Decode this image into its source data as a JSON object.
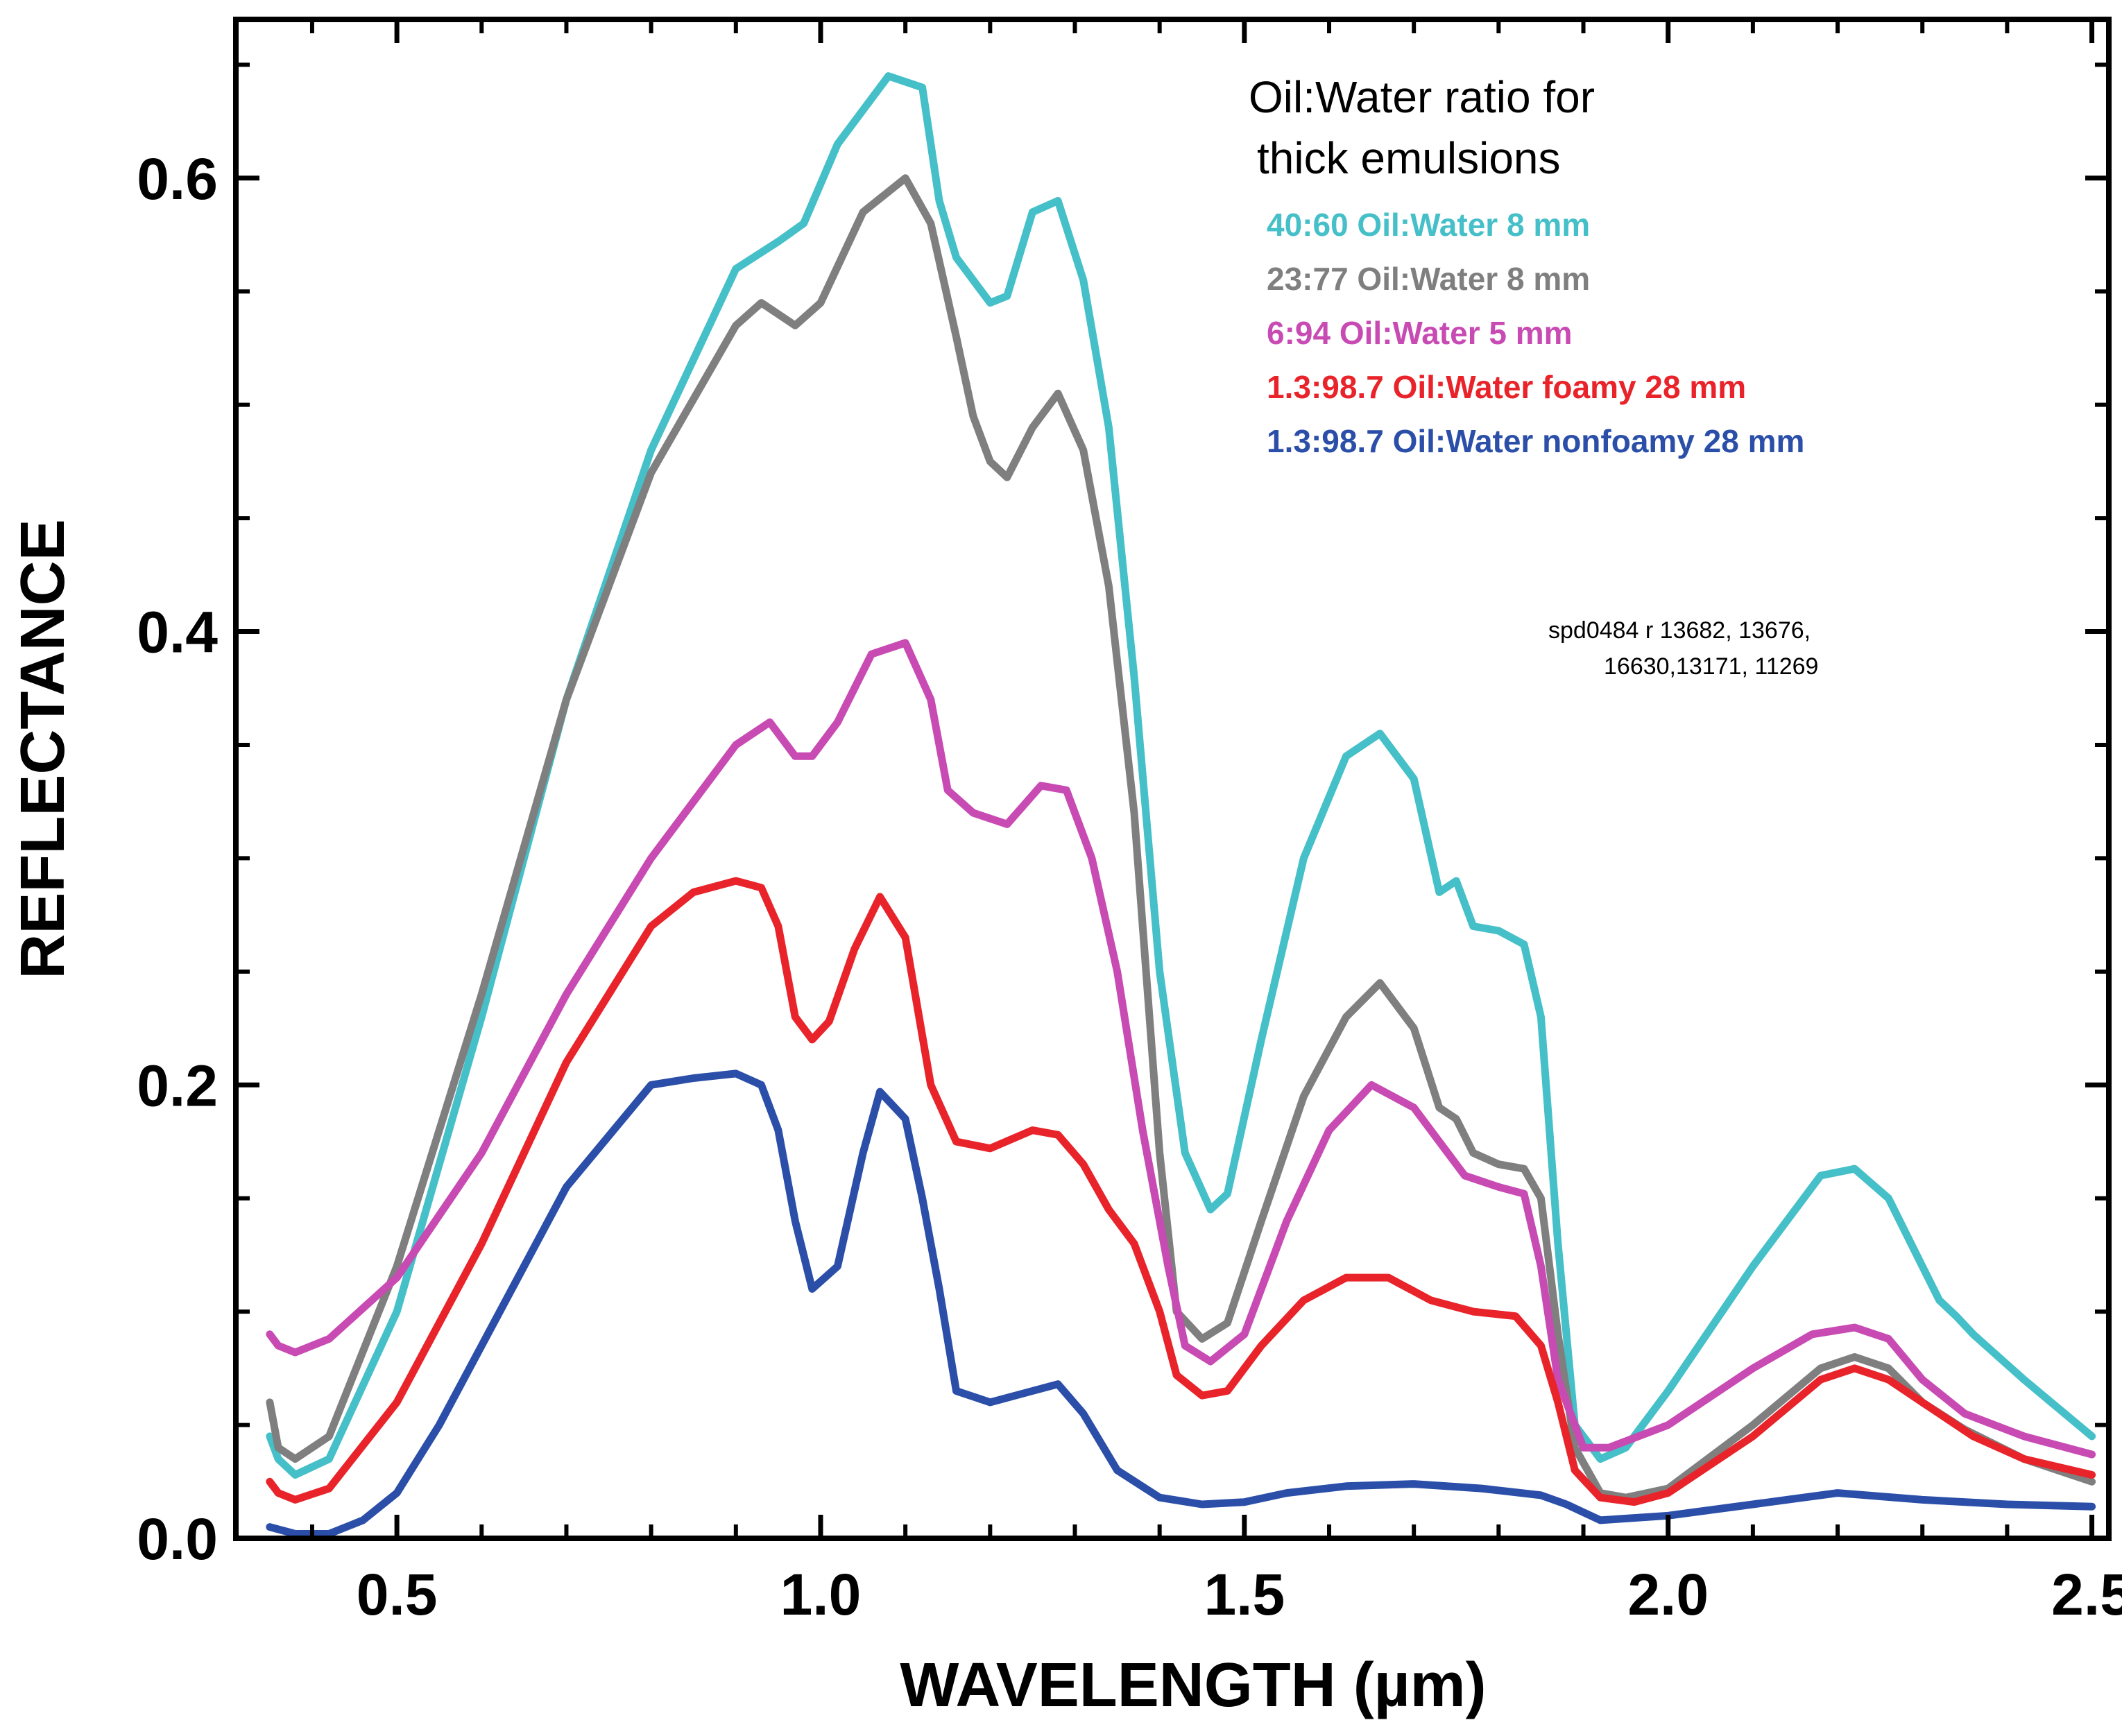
{
  "chart_data": {
    "type": "line",
    "title": "",
    "xlabel": "WAVELENGTH (µm)",
    "ylabel": "REFLECTANCE",
    "xlim": [
      0.31,
      2.52
    ],
    "ylim": [
      0.0,
      0.67
    ],
    "x_ticks": [
      0.5,
      1.0,
      1.5,
      2.0,
      2.5
    ],
    "x_tick_labels": [
      "0.5",
      "1.0",
      "1.5",
      "2.0",
      "2.5"
    ],
    "y_ticks": [
      0.0,
      0.2,
      0.4,
      0.6
    ],
    "y_tick_labels": [
      "0.0",
      "0.2",
      "0.4",
      "0.6"
    ],
    "grid": false,
    "legend_title": [
      "Oil:Water ratio for",
      "thick emulsions"
    ],
    "legend_position": "top-right",
    "annotation": [
      "spd0484 r 13682, 13676,",
      "16630,13171, 11269"
    ],
    "series": [
      {
        "name": "40:60 Oil:Water  8 mm",
        "color": "#45bfc8",
        "x": [
          0.35,
          0.36,
          0.38,
          0.42,
          0.5,
          0.6,
          0.7,
          0.8,
          0.9,
          0.95,
          0.98,
          1.02,
          1.08,
          1.12,
          1.14,
          1.16,
          1.2,
          1.22,
          1.25,
          1.28,
          1.31,
          1.34,
          1.37,
          1.4,
          1.43,
          1.46,
          1.48,
          1.52,
          1.57,
          1.62,
          1.66,
          1.7,
          1.73,
          1.75,
          1.77,
          1.8,
          1.83,
          1.85,
          1.87,
          1.89,
          1.92,
          1.95,
          2.0,
          2.1,
          2.18,
          2.22,
          2.26,
          2.3,
          2.32,
          2.34,
          2.36,
          2.42,
          2.5
        ],
        "y": [
          0.045,
          0.035,
          0.028,
          0.035,
          0.1,
          0.23,
          0.37,
          0.48,
          0.56,
          0.572,
          0.58,
          0.615,
          0.645,
          0.64,
          0.59,
          0.565,
          0.545,
          0.548,
          0.585,
          0.59,
          0.555,
          0.49,
          0.38,
          0.25,
          0.17,
          0.145,
          0.152,
          0.22,
          0.3,
          0.345,
          0.355,
          0.335,
          0.285,
          0.29,
          0.27,
          0.268,
          0.262,
          0.23,
          0.13,
          0.05,
          0.035,
          0.04,
          0.065,
          0.12,
          0.16,
          0.163,
          0.15,
          0.12,
          0.105,
          0.098,
          0.09,
          0.07,
          0.045
        ]
      },
      {
        "name": "23:77 Oil:Water 8 mm",
        "color": "#7f7f7f",
        "x": [
          0.35,
          0.36,
          0.38,
          0.42,
          0.5,
          0.6,
          0.7,
          0.8,
          0.9,
          0.93,
          0.97,
          1.0,
          1.05,
          1.1,
          1.13,
          1.16,
          1.18,
          1.2,
          1.22,
          1.25,
          1.28,
          1.31,
          1.34,
          1.37,
          1.4,
          1.42,
          1.45,
          1.48,
          1.52,
          1.57,
          1.62,
          1.66,
          1.7,
          1.73,
          1.75,
          1.77,
          1.8,
          1.83,
          1.85,
          1.87,
          1.89,
          1.92,
          1.95,
          2.0,
          2.1,
          2.18,
          2.22,
          2.26,
          2.3,
          2.35,
          2.42,
          2.5
        ],
        "y": [
          0.06,
          0.04,
          0.035,
          0.045,
          0.12,
          0.24,
          0.37,
          0.47,
          0.535,
          0.545,
          0.535,
          0.545,
          0.585,
          0.6,
          0.58,
          0.53,
          0.495,
          0.475,
          0.468,
          0.49,
          0.505,
          0.48,
          0.42,
          0.32,
          0.17,
          0.1,
          0.088,
          0.095,
          0.14,
          0.195,
          0.23,
          0.245,
          0.225,
          0.19,
          0.185,
          0.17,
          0.165,
          0.163,
          0.15,
          0.09,
          0.04,
          0.02,
          0.018,
          0.022,
          0.05,
          0.075,
          0.08,
          0.075,
          0.06,
          0.048,
          0.035,
          0.025
        ]
      },
      {
        "name": "6:94 Oil:Water 5 mm",
        "color": "#c84ab3",
        "x": [
          0.35,
          0.36,
          0.38,
          0.42,
          0.5,
          0.6,
          0.7,
          0.8,
          0.9,
          0.94,
          0.97,
          0.99,
          1.02,
          1.06,
          1.1,
          1.13,
          1.15,
          1.18,
          1.22,
          1.26,
          1.29,
          1.32,
          1.35,
          1.38,
          1.41,
          1.43,
          1.46,
          1.5,
          1.55,
          1.6,
          1.65,
          1.7,
          1.73,
          1.76,
          1.8,
          1.83,
          1.85,
          1.87,
          1.9,
          1.93,
          2.0,
          2.1,
          2.17,
          2.22,
          2.26,
          2.3,
          2.35,
          2.42,
          2.5
        ],
        "y": [
          0.09,
          0.085,
          0.082,
          0.088,
          0.115,
          0.17,
          0.24,
          0.3,
          0.35,
          0.36,
          0.345,
          0.345,
          0.36,
          0.39,
          0.395,
          0.37,
          0.33,
          0.32,
          0.315,
          0.332,
          0.33,
          0.3,
          0.25,
          0.18,
          0.12,
          0.085,
          0.078,
          0.09,
          0.14,
          0.18,
          0.2,
          0.19,
          0.175,
          0.16,
          0.155,
          0.152,
          0.12,
          0.07,
          0.04,
          0.04,
          0.05,
          0.075,
          0.09,
          0.093,
          0.088,
          0.07,
          0.055,
          0.045,
          0.037
        ]
      },
      {
        "name": "1.3:98.7 Oil:Water foamy 28 mm",
        "color": "#e8232a",
        "x": [
          0.35,
          0.36,
          0.38,
          0.42,
          0.5,
          0.6,
          0.7,
          0.8,
          0.85,
          0.9,
          0.93,
          0.95,
          0.97,
          0.99,
          1.01,
          1.04,
          1.07,
          1.1,
          1.13,
          1.16,
          1.2,
          1.25,
          1.28,
          1.31,
          1.34,
          1.37,
          1.4,
          1.42,
          1.45,
          1.48,
          1.52,
          1.57,
          1.62,
          1.67,
          1.72,
          1.77,
          1.82,
          1.85,
          1.87,
          1.89,
          1.92,
          1.96,
          2.0,
          2.1,
          2.18,
          2.22,
          2.26,
          2.3,
          2.36,
          2.42,
          2.5
        ],
        "y": [
          0.025,
          0.02,
          0.017,
          0.022,
          0.06,
          0.13,
          0.21,
          0.27,
          0.285,
          0.29,
          0.287,
          0.27,
          0.23,
          0.22,
          0.228,
          0.26,
          0.283,
          0.265,
          0.2,
          0.175,
          0.172,
          0.18,
          0.178,
          0.165,
          0.145,
          0.13,
          0.1,
          0.072,
          0.063,
          0.065,
          0.085,
          0.105,
          0.115,
          0.115,
          0.105,
          0.1,
          0.098,
          0.085,
          0.06,
          0.03,
          0.018,
          0.016,
          0.02,
          0.045,
          0.07,
          0.075,
          0.07,
          0.06,
          0.045,
          0.035,
          0.028
        ]
      },
      {
        "name": "1.3:98.7 Oil:Water nonfoamy 28 mm",
        "color": "#2b4fa8",
        "x": [
          0.35,
          0.38,
          0.42,
          0.46,
          0.5,
          0.55,
          0.6,
          0.7,
          0.8,
          0.85,
          0.9,
          0.93,
          0.95,
          0.97,
          0.99,
          1.02,
          1.05,
          1.07,
          1.1,
          1.12,
          1.14,
          1.16,
          1.2,
          1.25,
          1.28,
          1.31,
          1.35,
          1.4,
          1.45,
          1.5,
          1.55,
          1.62,
          1.7,
          1.78,
          1.85,
          1.88,
          1.92,
          2.0,
          2.1,
          2.2,
          2.3,
          2.4,
          2.5
        ],
        "y": [
          0.005,
          0.002,
          0.002,
          0.008,
          0.02,
          0.05,
          0.085,
          0.155,
          0.2,
          0.203,
          0.205,
          0.2,
          0.18,
          0.14,
          0.11,
          0.12,
          0.17,
          0.197,
          0.185,
          0.15,
          0.11,
          0.065,
          0.06,
          0.065,
          0.068,
          0.055,
          0.03,
          0.018,
          0.015,
          0.016,
          0.02,
          0.023,
          0.024,
          0.022,
          0.019,
          0.015,
          0.008,
          0.01,
          0.015,
          0.02,
          0.017,
          0.015,
          0.014
        ]
      }
    ]
  }
}
